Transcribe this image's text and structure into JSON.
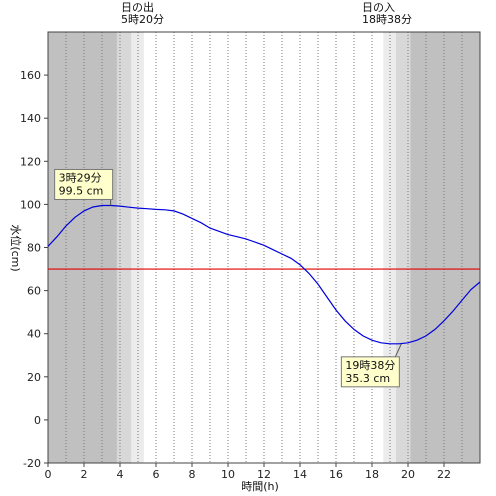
{
  "chart_data": {
    "type": "line",
    "xlabel": "時間(h)",
    "ylabel": "水位(cm)",
    "xlim": [
      0,
      24
    ],
    "ylim": [
      -20,
      180
    ],
    "x_ticks": [
      0,
      2,
      4,
      6,
      8,
      10,
      12,
      14,
      16,
      18,
      20,
      22
    ],
    "y_ticks": [
      -20,
      0,
      20,
      40,
      60,
      80,
      100,
      120,
      140,
      160
    ],
    "grid": "vertical dotted lines every hour",
    "sunrise": {
      "label": "日の出",
      "time": "5時20分",
      "hour": 5.33
    },
    "sunset": {
      "label": "日の入",
      "time": "18時38分",
      "hour": 18.63
    },
    "reference_line": {
      "y": 70,
      "color": "#e00000"
    },
    "series": [
      {
        "color": "#0000dd",
        "x": [
          0,
          0.5,
          1,
          1.5,
          2,
          2.5,
          3,
          3.5,
          4,
          4.5,
          5,
          5.5,
          6,
          6.5,
          7,
          7.5,
          8,
          8.5,
          9,
          9.5,
          10,
          10.5,
          11,
          11.5,
          12,
          12.5,
          13,
          13.5,
          14,
          14.5,
          15,
          15.5,
          16,
          16.5,
          17,
          17.5,
          18,
          18.5,
          19,
          19.5,
          20,
          20.5,
          21,
          21.5,
          22,
          22.5,
          23,
          23.5,
          24
        ],
        "y": [
          80.5,
          85,
          90,
          94,
          97,
          98.8,
          99.5,
          99.5,
          99.2,
          98.7,
          98.3,
          98,
          97.7,
          97.5,
          97,
          95.5,
          93.5,
          91.5,
          89,
          87.5,
          86,
          85,
          84,
          82.5,
          81,
          79,
          77,
          75,
          72,
          68,
          63,
          57,
          51,
          46,
          42,
          39,
          37,
          35.8,
          35.3,
          35.3,
          35.8,
          37,
          39,
          42,
          46,
          50.5,
          55.5,
          60.5,
          64
        ]
      }
    ],
    "annotations": [
      {
        "time": "3時29分",
        "value": "99.5 cm",
        "x": 3.48,
        "y": 99.5
      },
      {
        "time": "19時38分",
        "value": "35.3 cm",
        "x": 19.63,
        "y": 35.3
      }
    ]
  },
  "colors": {
    "night": "#c0c0c0",
    "twilight_dark": "#d8d8d8",
    "twilight_light": "#ececec",
    "day": "#ffffff",
    "annotation_bg": "#ffffcc"
  }
}
